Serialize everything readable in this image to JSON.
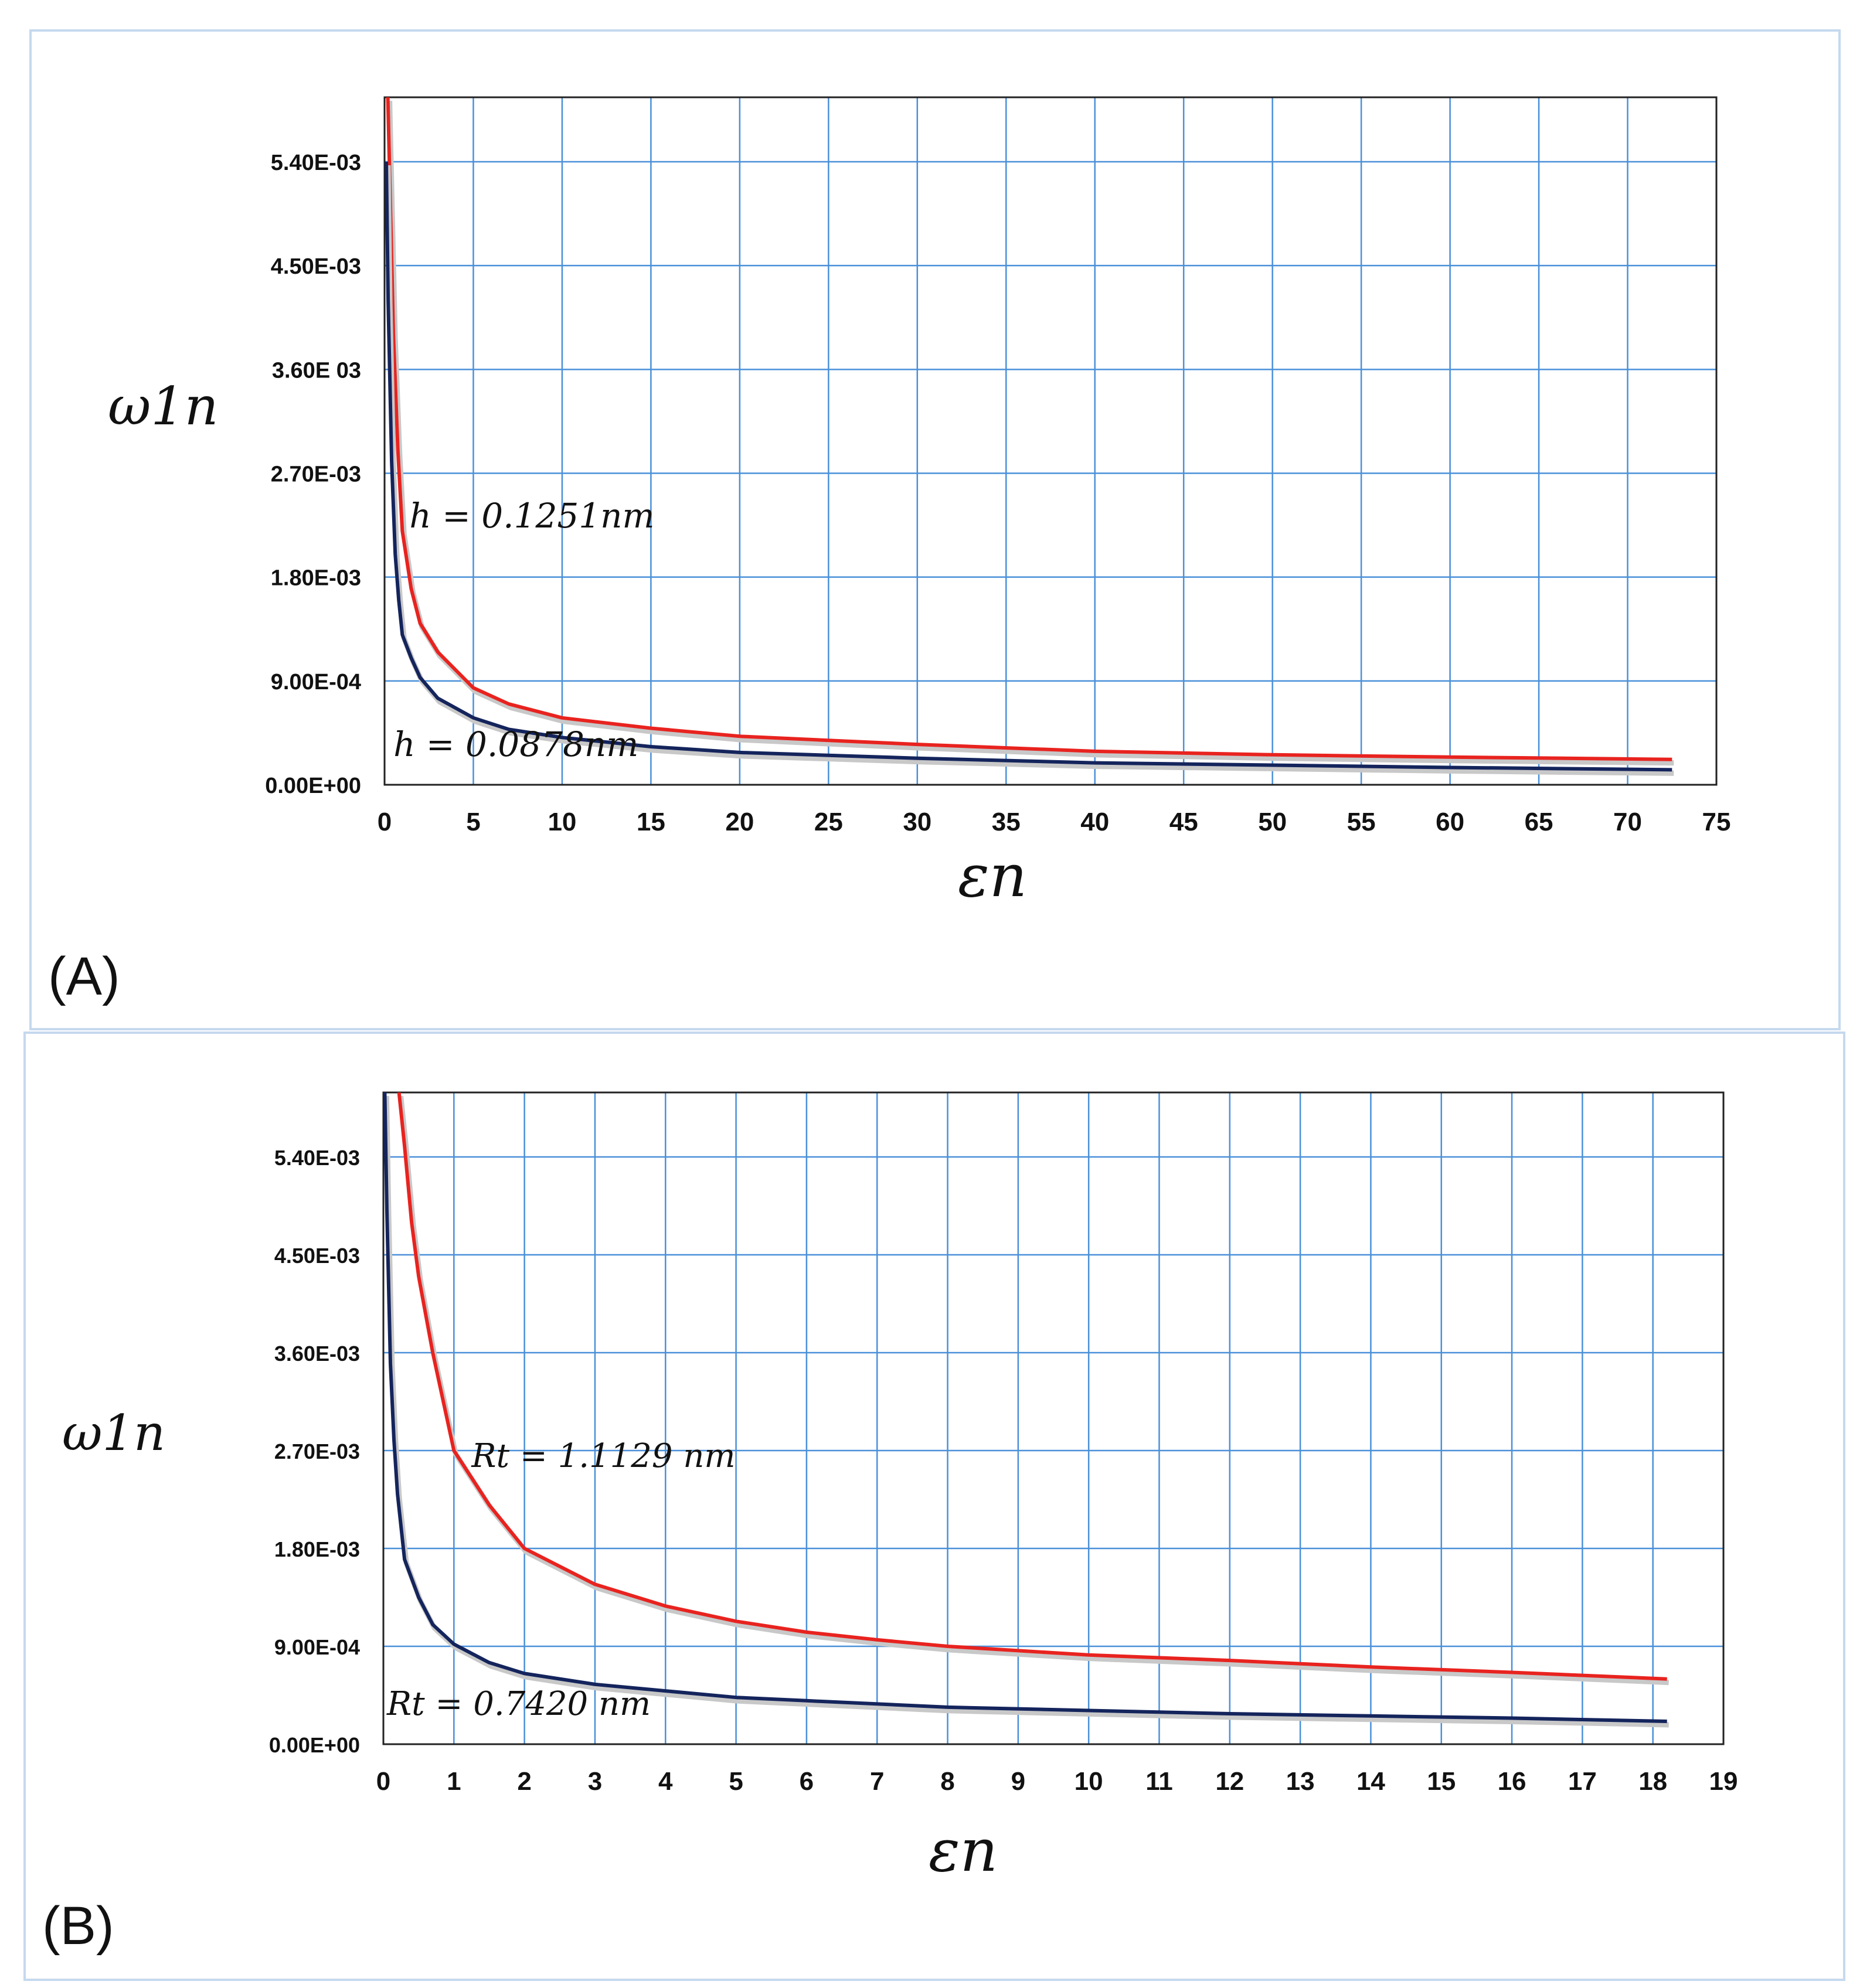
{
  "chart_data": [
    {
      "panel": "(A)",
      "type": "line",
      "xlabel": "εn",
      "ylabel": "ω1n",
      "xlim": [
        0,
        75
      ],
      "ylim": [
        0,
        0.006
      ],
      "x_ticks": [
        0,
        5,
        10,
        15,
        20,
        25,
        30,
        35,
        40,
        45,
        50,
        55,
        60,
        65,
        70,
        75
      ],
      "y_ticks": [
        {
          "value": 0.0,
          "label": "0.00E+00"
        },
        {
          "value": 0.0009,
          "label": "9.00E-04"
        },
        {
          "value": 0.0018,
          "label": "1.80E-03"
        },
        {
          "value": 0.0027,
          "label": "2.70E-03"
        },
        {
          "value": 0.0036,
          "label": "3.60E 03"
        },
        {
          "value": 0.0045,
          "label": "4.50E-03"
        },
        {
          "value": 0.0054,
          "label": "5.40E-03"
        }
      ],
      "grid": true,
      "series": [
        {
          "name": "h = 0.1251nm",
          "color": "#e8231f",
          "x": [
            0.15,
            0.3,
            0.5,
            0.75,
            1,
            1.5,
            2,
            3,
            5,
            7,
            10,
            15,
            20,
            30,
            40,
            50,
            60,
            72.5
          ],
          "y": [
            0.0062,
            0.0052,
            0.0039,
            0.0029,
            0.0022,
            0.0017,
            0.0014,
            0.00115,
            0.00084,
            0.0007,
            0.00058,
            0.00049,
            0.00042,
            0.00035,
            0.00029,
            0.00026,
            0.00024,
            0.00022
          ]
        },
        {
          "name": "h = 0.0878nm",
          "color": "#14245c",
          "x": [
            0.1,
            0.2,
            0.4,
            0.6,
            0.8,
            1,
            1.5,
            2,
            3,
            5,
            7,
            10,
            15,
            20,
            30,
            40,
            50,
            60,
            72.5
          ],
          "y": [
            0.0054,
            0.0042,
            0.0028,
            0.002,
            0.0016,
            0.0013,
            0.0011,
            0.00093,
            0.00075,
            0.00058,
            0.00048,
            0.00041,
            0.00033,
            0.00028,
            0.00023,
            0.00019,
            0.00017,
            0.00015,
            0.00013
          ]
        }
      ],
      "annotations": [
        {
          "text": "h = 0.1251nm",
          "x": 1.4,
          "y": 0.00223
        },
        {
          "text": "h = 0.0878nm",
          "x": 0.5,
          "y": 0.00025
        }
      ]
    },
    {
      "panel": "(B)",
      "type": "line",
      "xlabel": "εn",
      "ylabel": "ω1n",
      "xlim": [
        0,
        19
      ],
      "ylim": [
        0,
        0.006
      ],
      "x_ticks": [
        0,
        1,
        2,
        3,
        4,
        5,
        6,
        7,
        8,
        9,
        10,
        11,
        12,
        13,
        14,
        15,
        16,
        17,
        18,
        19
      ],
      "y_ticks": [
        {
          "value": 0.0,
          "label": "0.00E+00"
        },
        {
          "value": 0.0009,
          "label": "9.00E-04"
        },
        {
          "value": 0.0018,
          "label": "1.80E-03"
        },
        {
          "value": 0.0027,
          "label": "2.70E-03"
        },
        {
          "value": 0.0036,
          "label": "3.60E-03"
        },
        {
          "value": 0.0045,
          "label": "4.50E-03"
        },
        {
          "value": 0.0054,
          "label": "5.40E-03"
        }
      ],
      "grid": true,
      "series": [
        {
          "name": "Rt = 1.1129 nm",
          "color": "#e8231f",
          "x": [
            0.22,
            0.3,
            0.4,
            0.5,
            0.7,
            1,
            1.5,
            2,
            3,
            4,
            5,
            6,
            7,
            8,
            9,
            10,
            12,
            14,
            16,
            18.2
          ],
          "y": [
            0.006,
            0.0055,
            0.0048,
            0.0043,
            0.0036,
            0.0027,
            0.0022,
            0.0018,
            0.00147,
            0.00127,
            0.00113,
            0.00103,
            0.00096,
            0.0009,
            0.00086,
            0.00082,
            0.00077,
            0.00071,
            0.00066,
            0.0006
          ]
        },
        {
          "name": "Rt = 0.7420 nm",
          "color": "#14245c",
          "x": [
            0.02,
            0.05,
            0.1,
            0.15,
            0.2,
            0.3,
            0.5,
            0.7,
            1,
            1.5,
            2,
            3,
            4,
            5,
            6,
            8,
            10,
            12,
            14,
            16,
            18.2
          ],
          "y": [
            0.006,
            0.0049,
            0.0035,
            0.0028,
            0.0023,
            0.0017,
            0.00135,
            0.0011,
            0.00092,
            0.00075,
            0.00065,
            0.00055,
            0.00049,
            0.00043,
            0.0004,
            0.00034,
            0.00031,
            0.00028,
            0.00026,
            0.00024,
            0.00021
          ]
        }
      ],
      "annotations": [
        {
          "text": "Rt = 1.1129 nm",
          "x": 1.25,
          "y": 0.00255
        },
        {
          "text": "Rt = 0.7420 nm",
          "x": 0.05,
          "y": 0.00027
        }
      ]
    }
  ]
}
